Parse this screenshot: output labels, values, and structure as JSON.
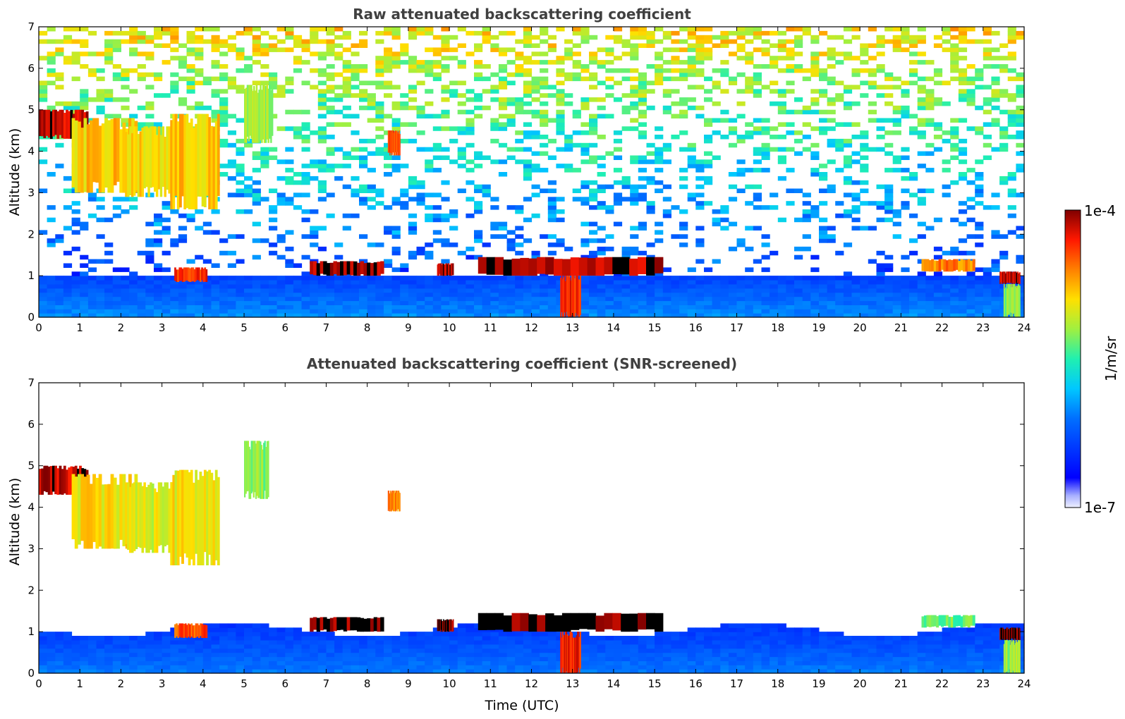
{
  "chart_data": [
    {
      "type": "heatmap",
      "title": "Raw attenuated backscattering coefficient",
      "xlabel": "",
      "ylabel": "Altitude (km)",
      "xlim": [
        0,
        24
      ],
      "ylim": [
        0,
        7
      ],
      "x_ticks": [
        "0",
        "1",
        "2",
        "3",
        "4",
        "5",
        "6",
        "7",
        "8",
        "9",
        "10",
        "11",
        "12",
        "13",
        "14",
        "15",
        "16",
        "17",
        "18",
        "19",
        "20",
        "21",
        "22",
        "23",
        "24"
      ],
      "y_ticks": [
        "0",
        "1",
        "2",
        "3",
        "4",
        "5",
        "6",
        "7"
      ],
      "color_scale": "log",
      "color_range": [
        1e-07,
        0.0001
      ],
      "background": "noisy",
      "features": [
        {
          "t0": 0.0,
          "t1": 1.2,
          "z0": 4.3,
          "z1": 5.0,
          "level": 0.95
        },
        {
          "t0": 0.8,
          "t1": 2.4,
          "z0": 3.0,
          "z1": 4.8,
          "level": 0.72
        },
        {
          "t0": 2.1,
          "t1": 3.2,
          "z0": 2.9,
          "z1": 4.6,
          "level": 0.7
        },
        {
          "t0": 3.2,
          "t1": 4.4,
          "z0": 2.6,
          "z1": 4.9,
          "level": 0.72
        },
        {
          "t0": 5.0,
          "t1": 5.7,
          "z0": 4.2,
          "z1": 5.6,
          "level": 0.6
        },
        {
          "t0": 8.5,
          "t1": 8.8,
          "z0": 3.9,
          "z1": 4.5,
          "level": 0.85
        },
        {
          "t0": 3.3,
          "t1": 4.1,
          "z0": 0.85,
          "z1": 1.2,
          "level": 0.88
        },
        {
          "t0": 6.6,
          "t1": 8.4,
          "z0": 1.0,
          "z1": 1.35,
          "level": 0.97
        },
        {
          "t0": 9.7,
          "t1": 10.1,
          "z0": 1.0,
          "z1": 1.3,
          "level": 0.95
        },
        {
          "t0": 10.7,
          "t1": 15.2,
          "z0": 1.0,
          "z1": 1.45,
          "level": 0.97
        },
        {
          "t0": 12.7,
          "t1": 13.2,
          "z0": 0.0,
          "z1": 1.0,
          "level": 0.9
        },
        {
          "t0": 21.5,
          "t1": 22.8,
          "z0": 1.1,
          "z1": 1.4,
          "level": 0.8
        },
        {
          "t0": 23.4,
          "t1": 23.9,
          "z0": 0.8,
          "z1": 1.1,
          "level": 0.95
        },
        {
          "t0": 23.5,
          "t1": 23.9,
          "z0": 0.0,
          "z1": 0.8,
          "level": 0.6
        }
      ]
    },
    {
      "type": "heatmap",
      "title": "Attenuated backscattering coefficient (SNR-screened)",
      "xlabel": "Time (UTC)",
      "ylabel": "Altitude (km)",
      "xlim": [
        0,
        24
      ],
      "ylim": [
        0,
        7
      ],
      "x_ticks": [
        "0",
        "1",
        "2",
        "3",
        "4",
        "5",
        "6",
        "7",
        "8",
        "9",
        "10",
        "11",
        "12",
        "13",
        "14",
        "15",
        "16",
        "17",
        "18",
        "19",
        "20",
        "21",
        "22",
        "23",
        "24"
      ],
      "y_ticks": [
        "0",
        "1",
        "2",
        "3",
        "4",
        "5",
        "6",
        "7"
      ],
      "color_scale": "log",
      "color_range": [
        1e-07,
        0.0001
      ],
      "background": "white",
      "features": [
        {
          "t0": 0.0,
          "t1": 1.2,
          "z0": 4.3,
          "z1": 5.0,
          "level": 0.95
        },
        {
          "t0": 0.8,
          "t1": 2.4,
          "z0": 3.0,
          "z1": 4.8,
          "level": 0.7
        },
        {
          "t0": 2.1,
          "t1": 3.2,
          "z0": 2.9,
          "z1": 4.6,
          "level": 0.66
        },
        {
          "t0": 3.2,
          "t1": 4.4,
          "z0": 2.6,
          "z1": 4.9,
          "level": 0.68
        },
        {
          "t0": 5.0,
          "t1": 5.6,
          "z0": 4.2,
          "z1": 5.6,
          "level": 0.58
        },
        {
          "t0": 8.5,
          "t1": 8.8,
          "z0": 3.9,
          "z1": 4.4,
          "level": 0.8
        },
        {
          "t0": 3.3,
          "t1": 4.1,
          "z0": 0.85,
          "z1": 1.2,
          "level": 0.85
        },
        {
          "t0": 6.6,
          "t1": 8.4,
          "z0": 1.0,
          "z1": 1.35,
          "level": 1.0
        },
        {
          "t0": 9.7,
          "t1": 10.1,
          "z0": 1.0,
          "z1": 1.3,
          "level": 1.0
        },
        {
          "t0": 10.7,
          "t1": 15.2,
          "z0": 1.0,
          "z1": 1.45,
          "level": 1.0
        },
        {
          "t0": 12.7,
          "t1": 13.2,
          "z0": 0.0,
          "z1": 1.0,
          "level": 0.9
        },
        {
          "t0": 21.5,
          "t1": 22.8,
          "z0": 1.1,
          "z1": 1.4,
          "level": 0.55
        },
        {
          "t0": 23.4,
          "t1": 23.9,
          "z0": 0.8,
          "z1": 1.1,
          "level": 1.0
        },
        {
          "t0": 23.5,
          "t1": 23.9,
          "z0": 0.0,
          "z1": 0.8,
          "level": 0.6
        }
      ]
    }
  ],
  "colorbar": {
    "label": "1/m/sr",
    "max_label": "1e-4",
    "min_label": "1e-7",
    "colormap": "jet"
  }
}
